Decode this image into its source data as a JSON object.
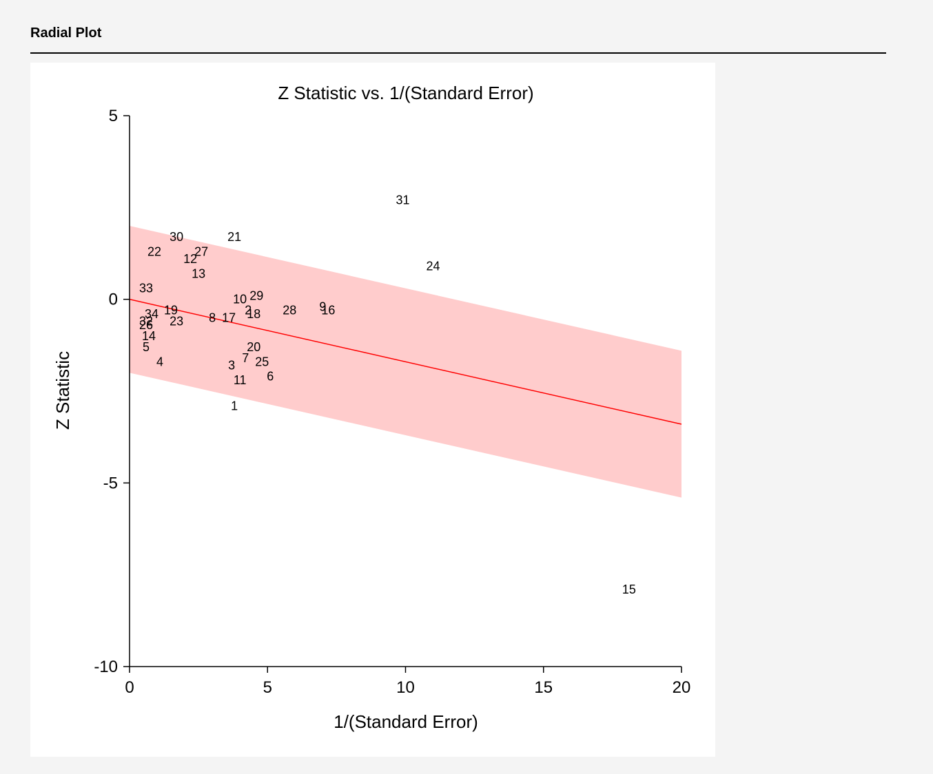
{
  "section": {
    "title": "Radial Plot"
  },
  "chart_data": {
    "type": "scatter",
    "title": "Z Statistic vs. 1/(Standard Error)",
    "xlabel": "1/(Standard Error)",
    "ylabel": "Z Statistic",
    "xlim": [
      0,
      20
    ],
    "ylim": [
      -10,
      5
    ],
    "xticks": [
      "0",
      "5",
      "10",
      "15",
      "20"
    ],
    "yticks": [
      "5",
      "0",
      "-5",
      "-10"
    ],
    "xtick_values": [
      0,
      5,
      10,
      15,
      20
    ],
    "ytick_values": [
      5,
      0,
      -5,
      -10
    ],
    "grid": false,
    "colors": {
      "line": "#ff0000",
      "band": "#ffcccc",
      "points": "#000000"
    },
    "fit_line": {
      "intercept": 0,
      "slope": -0.17,
      "x_range": [
        0,
        20
      ]
    },
    "confidence_band": {
      "half_width": 2,
      "x_range": [
        0,
        20
      ]
    },
    "points": [
      {
        "label": "1",
        "x": 3.8,
        "y": -2.9
      },
      {
        "label": "2",
        "x": 4.3,
        "y": -0.3
      },
      {
        "label": "3",
        "x": 3.7,
        "y": -1.8
      },
      {
        "label": "4",
        "x": 1.1,
        "y": -1.7
      },
      {
        "label": "5",
        "x": 0.6,
        "y": -1.3
      },
      {
        "label": "6",
        "x": 5.1,
        "y": -2.1
      },
      {
        "label": "7",
        "x": 4.2,
        "y": -1.6
      },
      {
        "label": "8",
        "x": 3.0,
        "y": -0.5
      },
      {
        "label": "9",
        "x": 7.0,
        "y": -0.2
      },
      {
        "label": "10",
        "x": 4.0,
        "y": 0.0
      },
      {
        "label": "11",
        "x": 4.0,
        "y": -2.2
      },
      {
        "label": "12",
        "x": 2.2,
        "y": 1.1
      },
      {
        "label": "13",
        "x": 2.5,
        "y": 0.7
      },
      {
        "label": "14",
        "x": 0.7,
        "y": -1.0
      },
      {
        "label": "15",
        "x": 18.1,
        "y": -7.9
      },
      {
        "label": "16",
        "x": 7.2,
        "y": -0.3
      },
      {
        "label": "17",
        "x": 3.6,
        "y": -0.5
      },
      {
        "label": "18",
        "x": 4.5,
        "y": -0.4
      },
      {
        "label": "19",
        "x": 1.5,
        "y": -0.3
      },
      {
        "label": "20",
        "x": 4.5,
        "y": -1.3
      },
      {
        "label": "21",
        "x": 3.8,
        "y": 1.7
      },
      {
        "label": "22",
        "x": 0.9,
        "y": 1.3
      },
      {
        "label": "23",
        "x": 1.7,
        "y": -0.6
      },
      {
        "label": "24",
        "x": 11.0,
        "y": 0.9
      },
      {
        "label": "25",
        "x": 4.8,
        "y": -1.7
      },
      {
        "label": "26",
        "x": 0.6,
        "y": -0.7
      },
      {
        "label": "27",
        "x": 2.6,
        "y": 1.3
      },
      {
        "label": "28",
        "x": 5.8,
        "y": -0.3
      },
      {
        "label": "29",
        "x": 4.6,
        "y": 0.1
      },
      {
        "label": "30",
        "x": 1.7,
        "y": 1.7
      },
      {
        "label": "31",
        "x": 9.9,
        "y": 2.7
      },
      {
        "label": "32",
        "x": 0.6,
        "y": -0.6
      },
      {
        "label": "33",
        "x": 0.6,
        "y": 0.3
      },
      {
        "label": "34",
        "x": 0.8,
        "y": -0.4
      }
    ]
  }
}
